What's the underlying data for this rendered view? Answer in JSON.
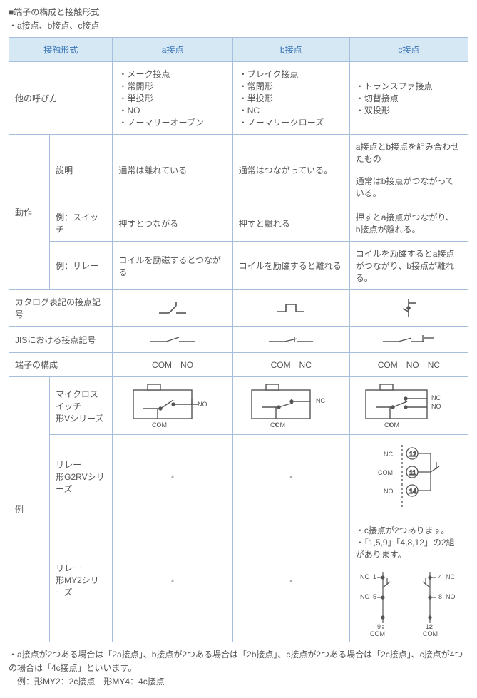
{
  "heading": {
    "title": "■端子の構成と接触形式",
    "subtitle": "・a接点、b接点、c接点"
  },
  "table": {
    "col_widths": [
      "55",
      "85",
      "162",
      "158",
      "160"
    ],
    "header": {
      "contact_type": "接触形式",
      "a": "a接点",
      "b": "b接点",
      "c": "c接点"
    },
    "other_names": {
      "label": "他の呼び方",
      "a": [
        "メーク接点",
        "常開形",
        "単投形",
        "NO",
        "ノーマリーオープン"
      ],
      "b": [
        "ブレイク接点",
        "常閉形",
        "単投形",
        "NC",
        "ノーマリークローズ"
      ],
      "c": [
        "トランスファ接点",
        "切替接点",
        "双投形"
      ]
    },
    "operation": {
      "group_label": "動作",
      "desc": {
        "label": "説明",
        "a": "通常は離れている",
        "b": "通常はつながっている。",
        "c": "a接点とb接点を組み合わせたもの\n\n通常はb接点がつながっている。"
      },
      "switch": {
        "label": "例：スイッチ",
        "a": "押すとつながる",
        "b": "押すと離れる",
        "c": "押すとa接点がつながり、　b接点が離れる。"
      },
      "relay": {
        "label": "例：リレー",
        "a": "コイルを励磁するとつながる",
        "b": "コイルを励磁すると離れる",
        "c": "コイルを励磁するとa接点がつながり、b接点が離れる。"
      }
    },
    "catalog_symbol": {
      "label": "カタログ表記の接点記号"
    },
    "jis_symbol": {
      "label": "JISにおける接点記号"
    },
    "terminal": {
      "label": "端子の構成",
      "a": "COM　NO",
      "b": "COM　NC",
      "c": "COM　NO　NC"
    },
    "examples": {
      "group_label": "例",
      "micro": {
        "label": "マイクロスイッチ\n形Vシリーズ"
      },
      "g2rv": {
        "label": "リレー\n形G2RVシリーズ",
        "a": "-",
        "b": "-"
      },
      "my2": {
        "label": "リレー\n形MY2シリーズ",
        "a": "-",
        "b": "-",
        "notes": [
          "c接点が2つあります。",
          "「1,5,9」「4,8,12」の2組があります。"
        ]
      }
    },
    "diag_labels": {
      "com": "COM",
      "no": "NO",
      "nc": "NC",
      "g2rv_nc": "NC",
      "g2rv_com": "COM",
      "g2rv_no": "NO",
      "g2rv_12": "12",
      "g2rv_11": "11",
      "g2rv_14": "14",
      "my2": {
        "1": "1",
        "4": "4",
        "5": "5",
        "8": "8",
        "9": "9",
        "12": "12",
        "nc": "NC",
        "no": "NO",
        "com": "COM"
      }
    }
  },
  "footnote": {
    "line1": "・a接点が2つある場合は「2a接点」、b接点が2つある場合は「2b接点」、c接点が2つある場合は「2c接点」、c接点が4つの場合は「4c接点」といいます。",
    "line2": "例：形MY2：2c接点　形MY4：4c接点"
  },
  "style": {
    "border_color": "#a7bfdc",
    "header_bg": "#d7e8f5",
    "header_text": "#3976b7",
    "body_text": "#555555",
    "svg_stroke": "#555555",
    "svg_label_size": 9
  }
}
